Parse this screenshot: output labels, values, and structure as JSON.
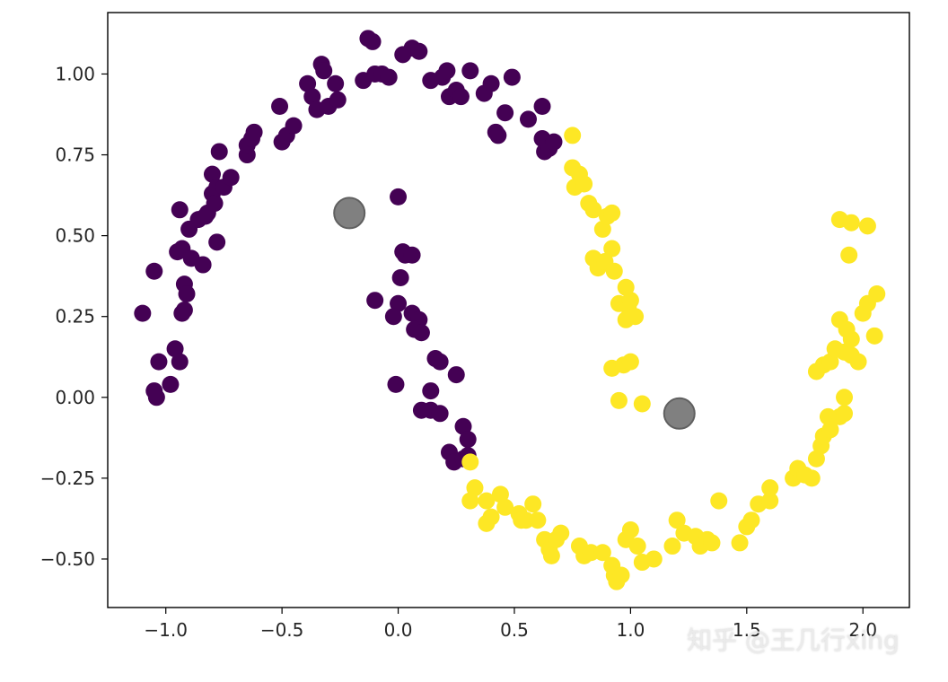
{
  "chart_data": {
    "type": "scatter",
    "title": "",
    "xlabel": "",
    "ylabel": "",
    "xlim": [
      -1.25,
      2.2
    ],
    "ylim": [
      -0.65,
      1.19
    ],
    "xticks": [
      -1.0,
      -0.5,
      0.0,
      0.5,
      1.0,
      1.5,
      2.0
    ],
    "xtick_labels": [
      "−1.0",
      "−0.5",
      "0.0",
      "0.5",
      "1.0",
      "1.5",
      "2.0"
    ],
    "yticks": [
      -0.5,
      -0.25,
      0.0,
      0.25,
      0.5,
      0.75,
      1.0
    ],
    "ytick_labels": [
      "−0.50",
      "−0.25",
      "0.00",
      "0.25",
      "0.50",
      "0.75",
      "1.00"
    ],
    "grid": false,
    "legend": "none",
    "series": [
      {
        "color": "#440154",
        "points": [
          [
            -1.1,
            0.26
          ],
          [
            -1.05,
            0.39
          ],
          [
            -1.05,
            0.02
          ],
          [
            -1.04,
            0.0
          ],
          [
            -1.03,
            0.11
          ],
          [
            -0.98,
            0.04
          ],
          [
            -0.96,
            0.15
          ],
          [
            -0.95,
            0.45
          ],
          [
            -0.94,
            0.11
          ],
          [
            -0.94,
            0.58
          ],
          [
            -0.93,
            0.26
          ],
          [
            -0.93,
            0.46
          ],
          [
            -0.92,
            0.35
          ],
          [
            -0.92,
            0.27
          ],
          [
            -0.91,
            0.32
          ],
          [
            -0.9,
            0.52
          ],
          [
            -0.89,
            0.43
          ],
          [
            -0.86,
            0.55
          ],
          [
            -0.84,
            0.41
          ],
          [
            -0.83,
            0.56
          ],
          [
            -0.82,
            0.57
          ],
          [
            -0.8,
            0.63
          ],
          [
            -0.8,
            0.69
          ],
          [
            -0.79,
            0.6
          ],
          [
            -0.78,
            0.65
          ],
          [
            -0.78,
            0.48
          ],
          [
            -0.77,
            0.76
          ],
          [
            -0.75,
            0.65
          ],
          [
            -0.72,
            0.68
          ],
          [
            -0.65,
            0.75
          ],
          [
            -0.65,
            0.78
          ],
          [
            -0.63,
            0.8
          ],
          [
            -0.62,
            0.82
          ],
          [
            -0.51,
            0.9
          ],
          [
            -0.5,
            0.79
          ],
          [
            -0.48,
            0.81
          ],
          [
            -0.45,
            0.84
          ],
          [
            -0.39,
            0.97
          ],
          [
            -0.37,
            0.93
          ],
          [
            -0.35,
            0.89
          ],
          [
            -0.33,
            1.03
          ],
          [
            -0.32,
            1.01
          ],
          [
            -0.3,
            0.9
          ],
          [
            -0.27,
            0.97
          ],
          [
            -0.26,
            0.92
          ],
          [
            -0.15,
            0.98
          ],
          [
            -0.13,
            1.11
          ],
          [
            -0.11,
            1.1
          ],
          [
            -0.1,
            1.0
          ],
          [
            -0.07,
            1.0
          ],
          [
            -0.04,
            0.99
          ],
          [
            0.02,
            1.06
          ],
          [
            0.06,
            1.08
          ],
          [
            0.09,
            1.07
          ],
          [
            0.14,
            0.98
          ],
          [
            0.19,
            0.99
          ],
          [
            0.21,
            1.01
          ],
          [
            0.22,
            0.93
          ],
          [
            0.25,
            0.95
          ],
          [
            0.27,
            0.93
          ],
          [
            0.31,
            1.01
          ],
          [
            0.37,
            0.94
          ],
          [
            0.4,
            0.97
          ],
          [
            0.42,
            0.82
          ],
          [
            0.43,
            0.81
          ],
          [
            0.46,
            0.88
          ],
          [
            0.49,
            0.99
          ],
          [
            0.56,
            0.86
          ],
          [
            0.62,
            0.9
          ],
          [
            0.62,
            0.8
          ],
          [
            0.63,
            0.76
          ],
          [
            0.65,
            0.77
          ],
          [
            0.67,
            0.79
          ],
          [
            0.0,
            0.62
          ],
          [
            0.02,
            0.45
          ],
          [
            0.03,
            0.44
          ],
          [
            0.06,
            0.44
          ],
          [
            0.01,
            0.37
          ],
          [
            -0.1,
            0.3
          ],
          [
            0.0,
            0.29
          ],
          [
            -0.02,
            0.25
          ],
          [
            0.06,
            0.26
          ],
          [
            0.09,
            0.24
          ],
          [
            0.07,
            0.21
          ],
          [
            0.1,
            0.2
          ],
          [
            0.16,
            0.12
          ],
          [
            0.18,
            0.11
          ],
          [
            0.25,
            0.07
          ],
          [
            0.14,
            0.02
          ],
          [
            -0.01,
            0.04
          ],
          [
            0.1,
            -0.04
          ],
          [
            0.14,
            -0.04
          ],
          [
            0.18,
            -0.05
          ],
          [
            0.28,
            -0.09
          ],
          [
            0.3,
            -0.13
          ],
          [
            0.22,
            -0.17
          ],
          [
            0.24,
            -0.2
          ],
          [
            0.28,
            -0.19
          ],
          [
            0.3,
            -0.18
          ]
        ]
      },
      {
        "color": "#fde725",
        "points": [
          [
            0.75,
            0.81
          ],
          [
            0.75,
            0.71
          ],
          [
            0.78,
            0.69
          ],
          [
            0.76,
            0.65
          ],
          [
            0.8,
            0.66
          ],
          [
            0.82,
            0.6
          ],
          [
            0.84,
            0.58
          ],
          [
            0.88,
            0.52
          ],
          [
            0.9,
            0.56
          ],
          [
            0.92,
            0.57
          ],
          [
            0.84,
            0.43
          ],
          [
            0.86,
            0.4
          ],
          [
            0.89,
            0.42
          ],
          [
            0.93,
            0.39
          ],
          [
            0.92,
            0.46
          ],
          [
            0.95,
            0.29
          ],
          [
            0.98,
            0.34
          ],
          [
            0.99,
            0.28
          ],
          [
            1.0,
            0.3
          ],
          [
            0.98,
            0.24
          ],
          [
            1.02,
            0.25
          ],
          [
            0.92,
            0.09
          ],
          [
            0.97,
            0.1
          ],
          [
            1.0,
            0.11
          ],
          [
            0.95,
            -0.01
          ],
          [
            1.05,
            -0.02
          ],
          [
            0.31,
            -0.2
          ],
          [
            0.33,
            -0.28
          ],
          [
            0.31,
            -0.32
          ],
          [
            0.38,
            -0.32
          ],
          [
            0.4,
            -0.37
          ],
          [
            0.38,
            -0.39
          ],
          [
            0.44,
            -0.3
          ],
          [
            0.46,
            -0.34
          ],
          [
            0.52,
            -0.36
          ],
          [
            0.53,
            -0.38
          ],
          [
            0.55,
            -0.38
          ],
          [
            0.58,
            -0.33
          ],
          [
            0.6,
            -0.38
          ],
          [
            0.63,
            -0.44
          ],
          [
            0.65,
            -0.47
          ],
          [
            0.66,
            -0.49
          ],
          [
            0.68,
            -0.44
          ],
          [
            0.7,
            -0.42
          ],
          [
            0.78,
            -0.46
          ],
          [
            0.8,
            -0.49
          ],
          [
            0.83,
            -0.48
          ],
          [
            0.88,
            -0.48
          ],
          [
            0.92,
            -0.52
          ],
          [
            0.93,
            -0.55
          ],
          [
            0.94,
            -0.57
          ],
          [
            0.96,
            -0.55
          ],
          [
            0.98,
            -0.44
          ],
          [
            1.0,
            -0.41
          ],
          [
            1.03,
            -0.46
          ],
          [
            1.05,
            -0.51
          ],
          [
            1.1,
            -0.5
          ],
          [
            1.18,
            -0.46
          ],
          [
            1.2,
            -0.38
          ],
          [
            1.23,
            -0.42
          ],
          [
            1.28,
            -0.43
          ],
          [
            1.3,
            -0.46
          ],
          [
            1.33,
            -0.44
          ],
          [
            1.35,
            -0.45
          ],
          [
            1.38,
            -0.32
          ],
          [
            1.47,
            -0.45
          ],
          [
            1.5,
            -0.4
          ],
          [
            1.52,
            -0.38
          ],
          [
            1.55,
            -0.33
          ],
          [
            1.6,
            -0.32
          ],
          [
            1.6,
            -0.28
          ],
          [
            1.7,
            -0.25
          ],
          [
            1.72,
            -0.22
          ],
          [
            1.75,
            -0.24
          ],
          [
            1.78,
            -0.25
          ],
          [
            1.8,
            -0.19
          ],
          [
            1.82,
            -0.15
          ],
          [
            1.83,
            -0.12
          ],
          [
            1.86,
            -0.1
          ],
          [
            1.85,
            -0.06
          ],
          [
            1.9,
            -0.06
          ],
          [
            1.92,
            -0.05
          ],
          [
            1.92,
            0.0
          ],
          [
            1.8,
            0.08
          ],
          [
            1.83,
            0.1
          ],
          [
            1.86,
            0.11
          ],
          [
            1.88,
            0.15
          ],
          [
            1.92,
            0.14
          ],
          [
            1.95,
            0.13
          ],
          [
            1.98,
            0.11
          ],
          [
            1.9,
            0.24
          ],
          [
            1.93,
            0.21
          ],
          [
            1.95,
            0.18
          ],
          [
            2.0,
            0.26
          ],
          [
            2.02,
            0.29
          ],
          [
            2.05,
            0.19
          ],
          [
            2.06,
            0.32
          ],
          [
            1.9,
            0.55
          ],
          [
            1.95,
            0.54
          ],
          [
            1.94,
            0.44
          ],
          [
            2.02,
            0.53
          ]
        ]
      },
      {
        "color": "#808080",
        "outline": "#606060",
        "points": [
          [
            -0.21,
            0.57
          ],
          [
            1.21,
            -0.05
          ]
        ]
      }
    ]
  },
  "watermark": "知乎 @王几行xing"
}
